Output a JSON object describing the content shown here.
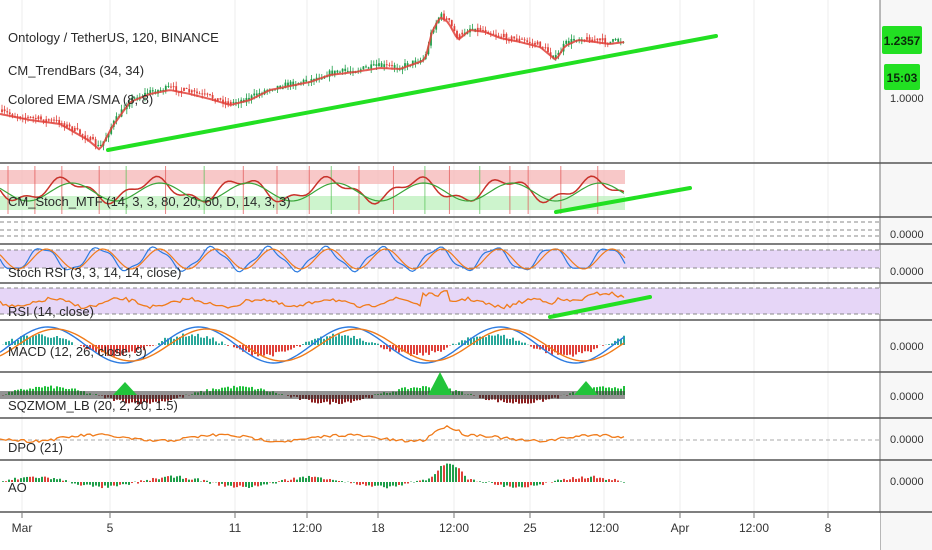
{
  "chart_data": {
    "type": "line",
    "symbol_title": "Ontology / TetherUS, 120, BINANCE",
    "price_badge": "1.2357",
    "countdown_badge": "15:03",
    "price_axis_partial": "1.0000",
    "x_ticks": [
      "Mar",
      "5",
      "11",
      "12:00",
      "18",
      "12:00",
      "25",
      "12:00",
      "Apr",
      "12:00",
      "8"
    ],
    "colors": {
      "trendline": "#22e022",
      "bull": "#1f9e4a",
      "bear": "#e0413a",
      "rsi_line": "#f07b1a",
      "stoch_k": "#2d7be0",
      "band_fill": "#e6d6f7",
      "badge": "#22e022"
    },
    "panes": [
      {
        "id": "price",
        "legend": [
          "CM_TrendBars (34, 34)",
          "Colored EMA /SMA (8, 8)"
        ]
      },
      {
        "id": "cm-stoch",
        "legend": [
          "CM_Stoch_MTF (14, 3, 3, 80, 20, 60, D, 14, 3, 3)"
        ]
      },
      {
        "id": "stoch-rsi",
        "legend": [
          "Stoch RSI (3, 3, 14, 14, close)"
        ],
        "axis_value": "0.0000"
      },
      {
        "id": "rsi",
        "legend": [
          "RSI (14, close)"
        ],
        "axis_value": "0.0000"
      },
      {
        "id": "macd",
        "legend": [
          "MACD (12, 26, close, 9)"
        ],
        "axis_value": "0.0000"
      },
      {
        "id": "sqzmom",
        "legend": [
          "SQZMOM_LB (20, 2, 20, 1.5)"
        ],
        "axis_value": "0.0000"
      },
      {
        "id": "dpo",
        "legend": [
          "DPO (21)"
        ],
        "axis_value": "0.0000"
      },
      {
        "id": "ao",
        "legend": [
          "AO"
        ],
        "axis_value": "0.0000"
      }
    ]
  }
}
